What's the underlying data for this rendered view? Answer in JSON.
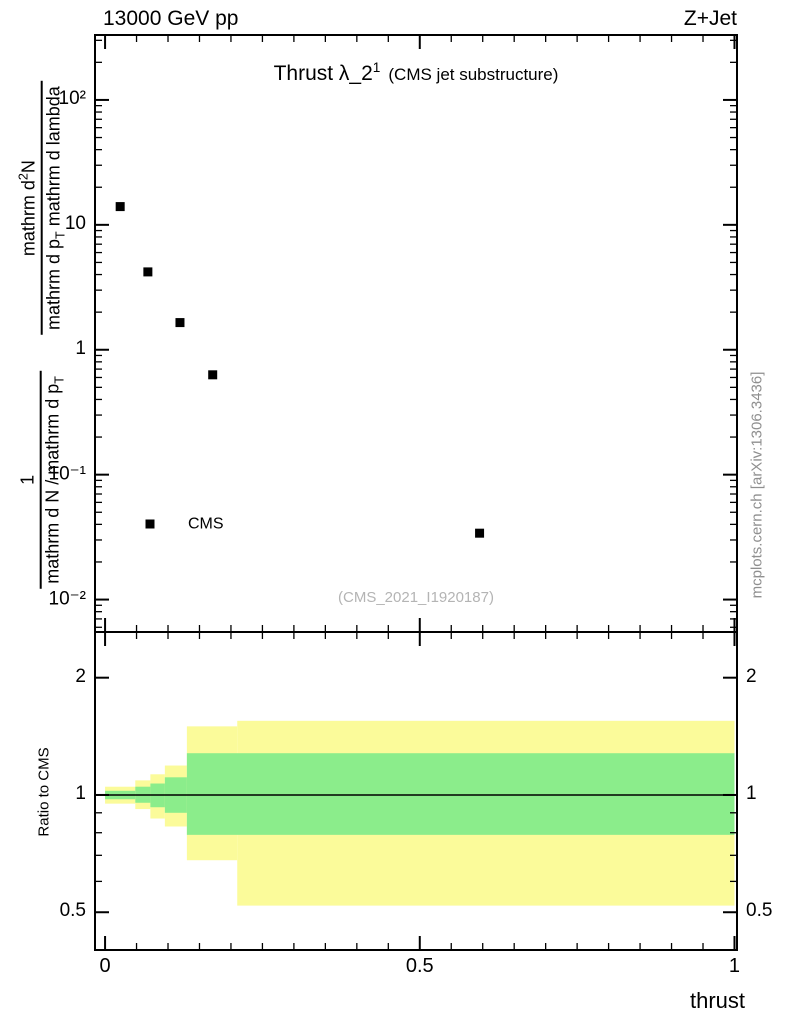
{
  "header": {
    "left_title": "13000 GeV pp",
    "right_title": "Z+Jet"
  },
  "plot": {
    "title_segments": [
      {
        "t": "Thrust λ_2"
      },
      {
        "sup": "1"
      }
    ],
    "subtitle": "(CMS jet substructure)",
    "legend_label": "CMS",
    "watermark": "(CMS_2021_I1920187)",
    "side_label": "mcplots.cern.ch [arXiv:1306.3436]",
    "ratio_label": "Ratio to CMS",
    "xlabel": "thrust",
    "ylabel": {
      "frac1": {
        "num": [
          {
            "t": "1"
          }
        ],
        "den": [
          {
            "t": "mathrm d N / mathrm d p"
          },
          {
            "sub": "T"
          }
        ]
      },
      "frac2": {
        "num": [
          {
            "t": "mathrm d"
          },
          {
            "sup": "2"
          },
          {
            "t": "N"
          }
        ],
        "den": [
          {
            "t": "mathrm d p"
          },
          {
            "sub": "T"
          },
          {
            "t": " mathrm d lambda"
          }
        ]
      }
    }
  },
  "colors": {
    "marker": "#000000",
    "band_outer": "#fbfb9a",
    "band_inner": "#8bed8b",
    "frame": "#000000",
    "watermark": "#b4b4b4",
    "side_label": "#8f8f8f"
  },
  "chart_data": [
    {
      "id": "main",
      "type": "scatter",
      "yscale": "log",
      "xlim": [
        -0.016,
        1.004
      ],
      "ylim": [
        0.0055,
        331
      ],
      "xticks": {
        "major": [
          0,
          0.5,
          1
        ],
        "minor_step": 0.05
      },
      "yticks": [
        {
          "value": 100,
          "label": "10²"
        },
        {
          "value": 10,
          "label": "10"
        },
        {
          "value": 1,
          "label": "1"
        },
        {
          "value": 0.1,
          "label": "10⁻¹"
        },
        {
          "value": 0.01,
          "label": "10⁻²"
        }
      ],
      "series": [
        {
          "name": "CMS",
          "marker": "filled-square",
          "color": "#000000",
          "points": [
            [
              0.024,
              14
            ],
            [
              0.068,
              4.2
            ],
            [
              0.119,
              1.65
            ],
            [
              0.171,
              0.63
            ],
            [
              0.595,
              0.034
            ]
          ]
        }
      ]
    },
    {
      "id": "ratio",
      "type": "band",
      "yscale": "log",
      "xlim": [
        -0.016,
        1.004
      ],
      "ylim": [
        0.4,
        2.62
      ],
      "xticks": {
        "major": [
          0,
          0.5,
          1
        ],
        "labels": [
          "0",
          "0.5",
          "1"
        ],
        "minor_step": 0.05
      },
      "yticks": [
        {
          "value": 2,
          "label": "2"
        },
        {
          "value": 1,
          "label": "1"
        },
        {
          "value": 0.5,
          "label": "0.5"
        }
      ],
      "yminor": [
        0.6,
        0.7,
        0.8,
        0.9
      ],
      "reference_line": 1.0,
      "bands": {
        "outer": {
          "segments": [
            [
              0.0,
              0.048,
              0.95,
              1.05
            ],
            [
              0.048,
              0.072,
              0.92,
              1.09
            ],
            [
              0.072,
              0.095,
              0.87,
              1.13
            ],
            [
              0.095,
              0.13,
              0.83,
              1.19
            ],
            [
              0.13,
              0.21,
              0.68,
              1.5
            ],
            [
              0.21,
              1.0,
              0.52,
              1.55
            ]
          ]
        },
        "inner": {
          "segments": [
            [
              0.0,
              0.048,
              0.975,
              1.025
            ],
            [
              0.048,
              0.072,
              0.955,
              1.05
            ],
            [
              0.072,
              0.095,
              0.93,
              1.07
            ],
            [
              0.095,
              0.13,
              0.9,
              1.11
            ],
            [
              0.13,
              1.0,
              0.79,
              1.28
            ]
          ]
        }
      }
    }
  ]
}
